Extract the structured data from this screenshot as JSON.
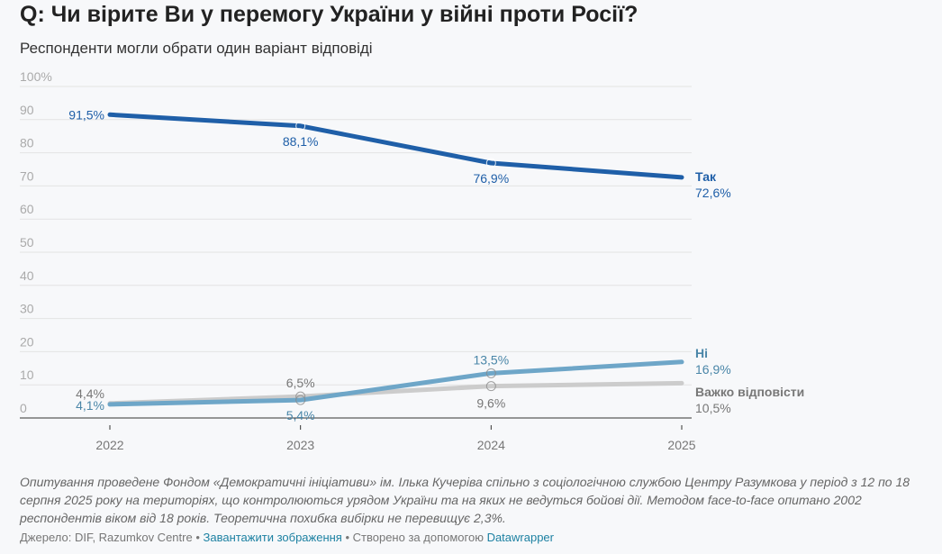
{
  "title": "Q: Чи вірите Ви у перемогу України у війні проти Росії?",
  "subtitle": "Респонденти могли обрати один варіант відповіді",
  "chart_data": {
    "type": "line",
    "x": [
      "2022",
      "2023",
      "2024",
      "2025"
    ],
    "ylim": [
      0,
      100
    ],
    "yticks": [
      "0",
      "10",
      "20",
      "30",
      "40",
      "50",
      "60",
      "70",
      "80",
      "90",
      "100%"
    ],
    "grid": true,
    "series": [
      {
        "name": "Так",
        "values": [
          91.5,
          88.1,
          76.9,
          72.6
        ],
        "labels": [
          "91,5%",
          "88,1%",
          "76,9%",
          "72,6%"
        ],
        "color": "#1f5fa8"
      },
      {
        "name": "Ні",
        "values": [
          4.1,
          5.4,
          13.5,
          16.9
        ],
        "labels": [
          "4,1%",
          "5,4%",
          "13,5%",
          "16,9%"
        ],
        "color": "#6ea6c8"
      },
      {
        "name": "Важко відповісти",
        "values": [
          4.4,
          6.5,
          9.6,
          10.5
        ],
        "labels": [
          "4,4%",
          "6,5%",
          "9,6%",
          "10,5%"
        ],
        "color": "#cccccc"
      }
    ]
  },
  "note": "Опитування проведене Фондом «Демократичні ініціативи» ім. Ілька Кучеріва спільно з соціологічною службою Центру Разумкова у період з 12 по 18 серпня 2025 року на територіях, що контролюються урядом України та на яких не ведуться бойові дії. Методом face-to-face опитано 2002 респондентів віком від 18 років. Теоретична похибка вибірки не перевищує 2,3%.",
  "footer": {
    "source": "Джерело: DIF, Razumkov Centre",
    "sep1": " • ",
    "download": "Завантажити зображення",
    "sep2": " • Створено за допомогою ",
    "tool": "Datawrapper"
  }
}
